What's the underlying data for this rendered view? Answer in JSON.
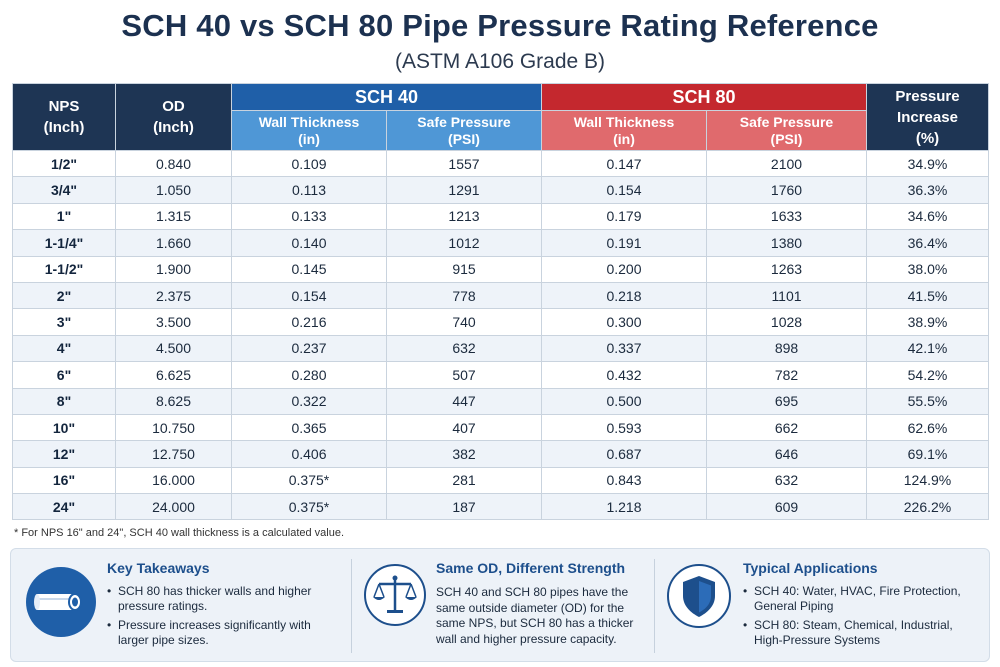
{
  "title": "SCH 40 vs SCH 80 Pipe Pressure Rating Reference",
  "subtitle": "(ASTM A106 Grade B)",
  "headers": {
    "nps": [
      "NPS",
      "(Inch)"
    ],
    "od": [
      "OD",
      "(Inch)"
    ],
    "sch40": "SCH 40",
    "sch80": "SCH 80",
    "increase": [
      "Pressure",
      "Increase",
      "(%)"
    ],
    "wall": [
      "Wall Thickness",
      "(in)"
    ],
    "psi": [
      "Safe Pressure",
      "(PSI)"
    ]
  },
  "rows": [
    [
      "1/2\"",
      "0.840",
      "0.109",
      "1557",
      "0.147",
      "2100",
      "34.9%"
    ],
    [
      "3/4\"",
      "1.050",
      "0.113",
      "1291",
      "0.154",
      "1760",
      "36.3%"
    ],
    [
      "1\"",
      "1.315",
      "0.133",
      "1213",
      "0.179",
      "1633",
      "34.6%"
    ],
    [
      "1-1/4\"",
      "1.660",
      "0.140",
      "1012",
      "0.191",
      "1380",
      "36.4%"
    ],
    [
      "1-1/2\"",
      "1.900",
      "0.145",
      "915",
      "0.200",
      "1263",
      "38.0%"
    ],
    [
      "2\"",
      "2.375",
      "0.154",
      "778",
      "0.218",
      "1101",
      "41.5%"
    ],
    [
      "3\"",
      "3.500",
      "0.216",
      "740",
      "0.300",
      "1028",
      "38.9%"
    ],
    [
      "4\"",
      "4.500",
      "0.237",
      "632",
      "0.337",
      "898",
      "42.1%"
    ],
    [
      "6\"",
      "6.625",
      "0.280",
      "507",
      "0.432",
      "782",
      "54.2%"
    ],
    [
      "8\"",
      "8.625",
      "0.322",
      "447",
      "0.500",
      "695",
      "55.5%"
    ],
    [
      "10\"",
      "10.750",
      "0.365",
      "407",
      "0.593",
      "662",
      "62.6%"
    ],
    [
      "12\"",
      "12.750",
      "0.406",
      "382",
      "0.687",
      "646",
      "69.1%"
    ],
    [
      "16\"",
      "16.000",
      "0.375*",
      "281",
      "0.843",
      "632",
      "124.9%"
    ],
    [
      "24\"",
      "24.000",
      "0.375*",
      "187",
      "1.218",
      "609",
      "226.2%"
    ]
  ],
  "footnote": "* For NPS 16\" and 24\", SCH 40 wall thickness is a calculated value.",
  "takeaways": {
    "title": "Key Takeaways",
    "icon": "pipe-icon",
    "bullets": [
      "SCH 80 has thicker walls and higher pressure ratings.",
      "Pressure increases significantly with larger pipe sizes."
    ]
  },
  "strength": {
    "title": "Same OD, Different Strength",
    "icon": "balance-scale-icon",
    "text": "SCH 40 and SCH 80 pipes have the same outside diameter  (OD) for the same NPS, but SCH 80 has a thicker wall and higher pressure capacity."
  },
  "applications": {
    "title": "Typical Applications",
    "icon": "shield-icon",
    "bullets": [
      "SCH 40: Water, HVAC, Fire Protection, General Piping",
      "SCH 80: Steam, Chemical, Industrial, High-Pressure Systems"
    ]
  },
  "colors": {
    "header_dark": "#1e3554",
    "sch40_blue": "#1f5fa8",
    "sch40_light": "#4f97d6",
    "sch80_red": "#c4282e",
    "sch80_light": "#e06a6d",
    "accent_title": "#1d4f8c"
  }
}
